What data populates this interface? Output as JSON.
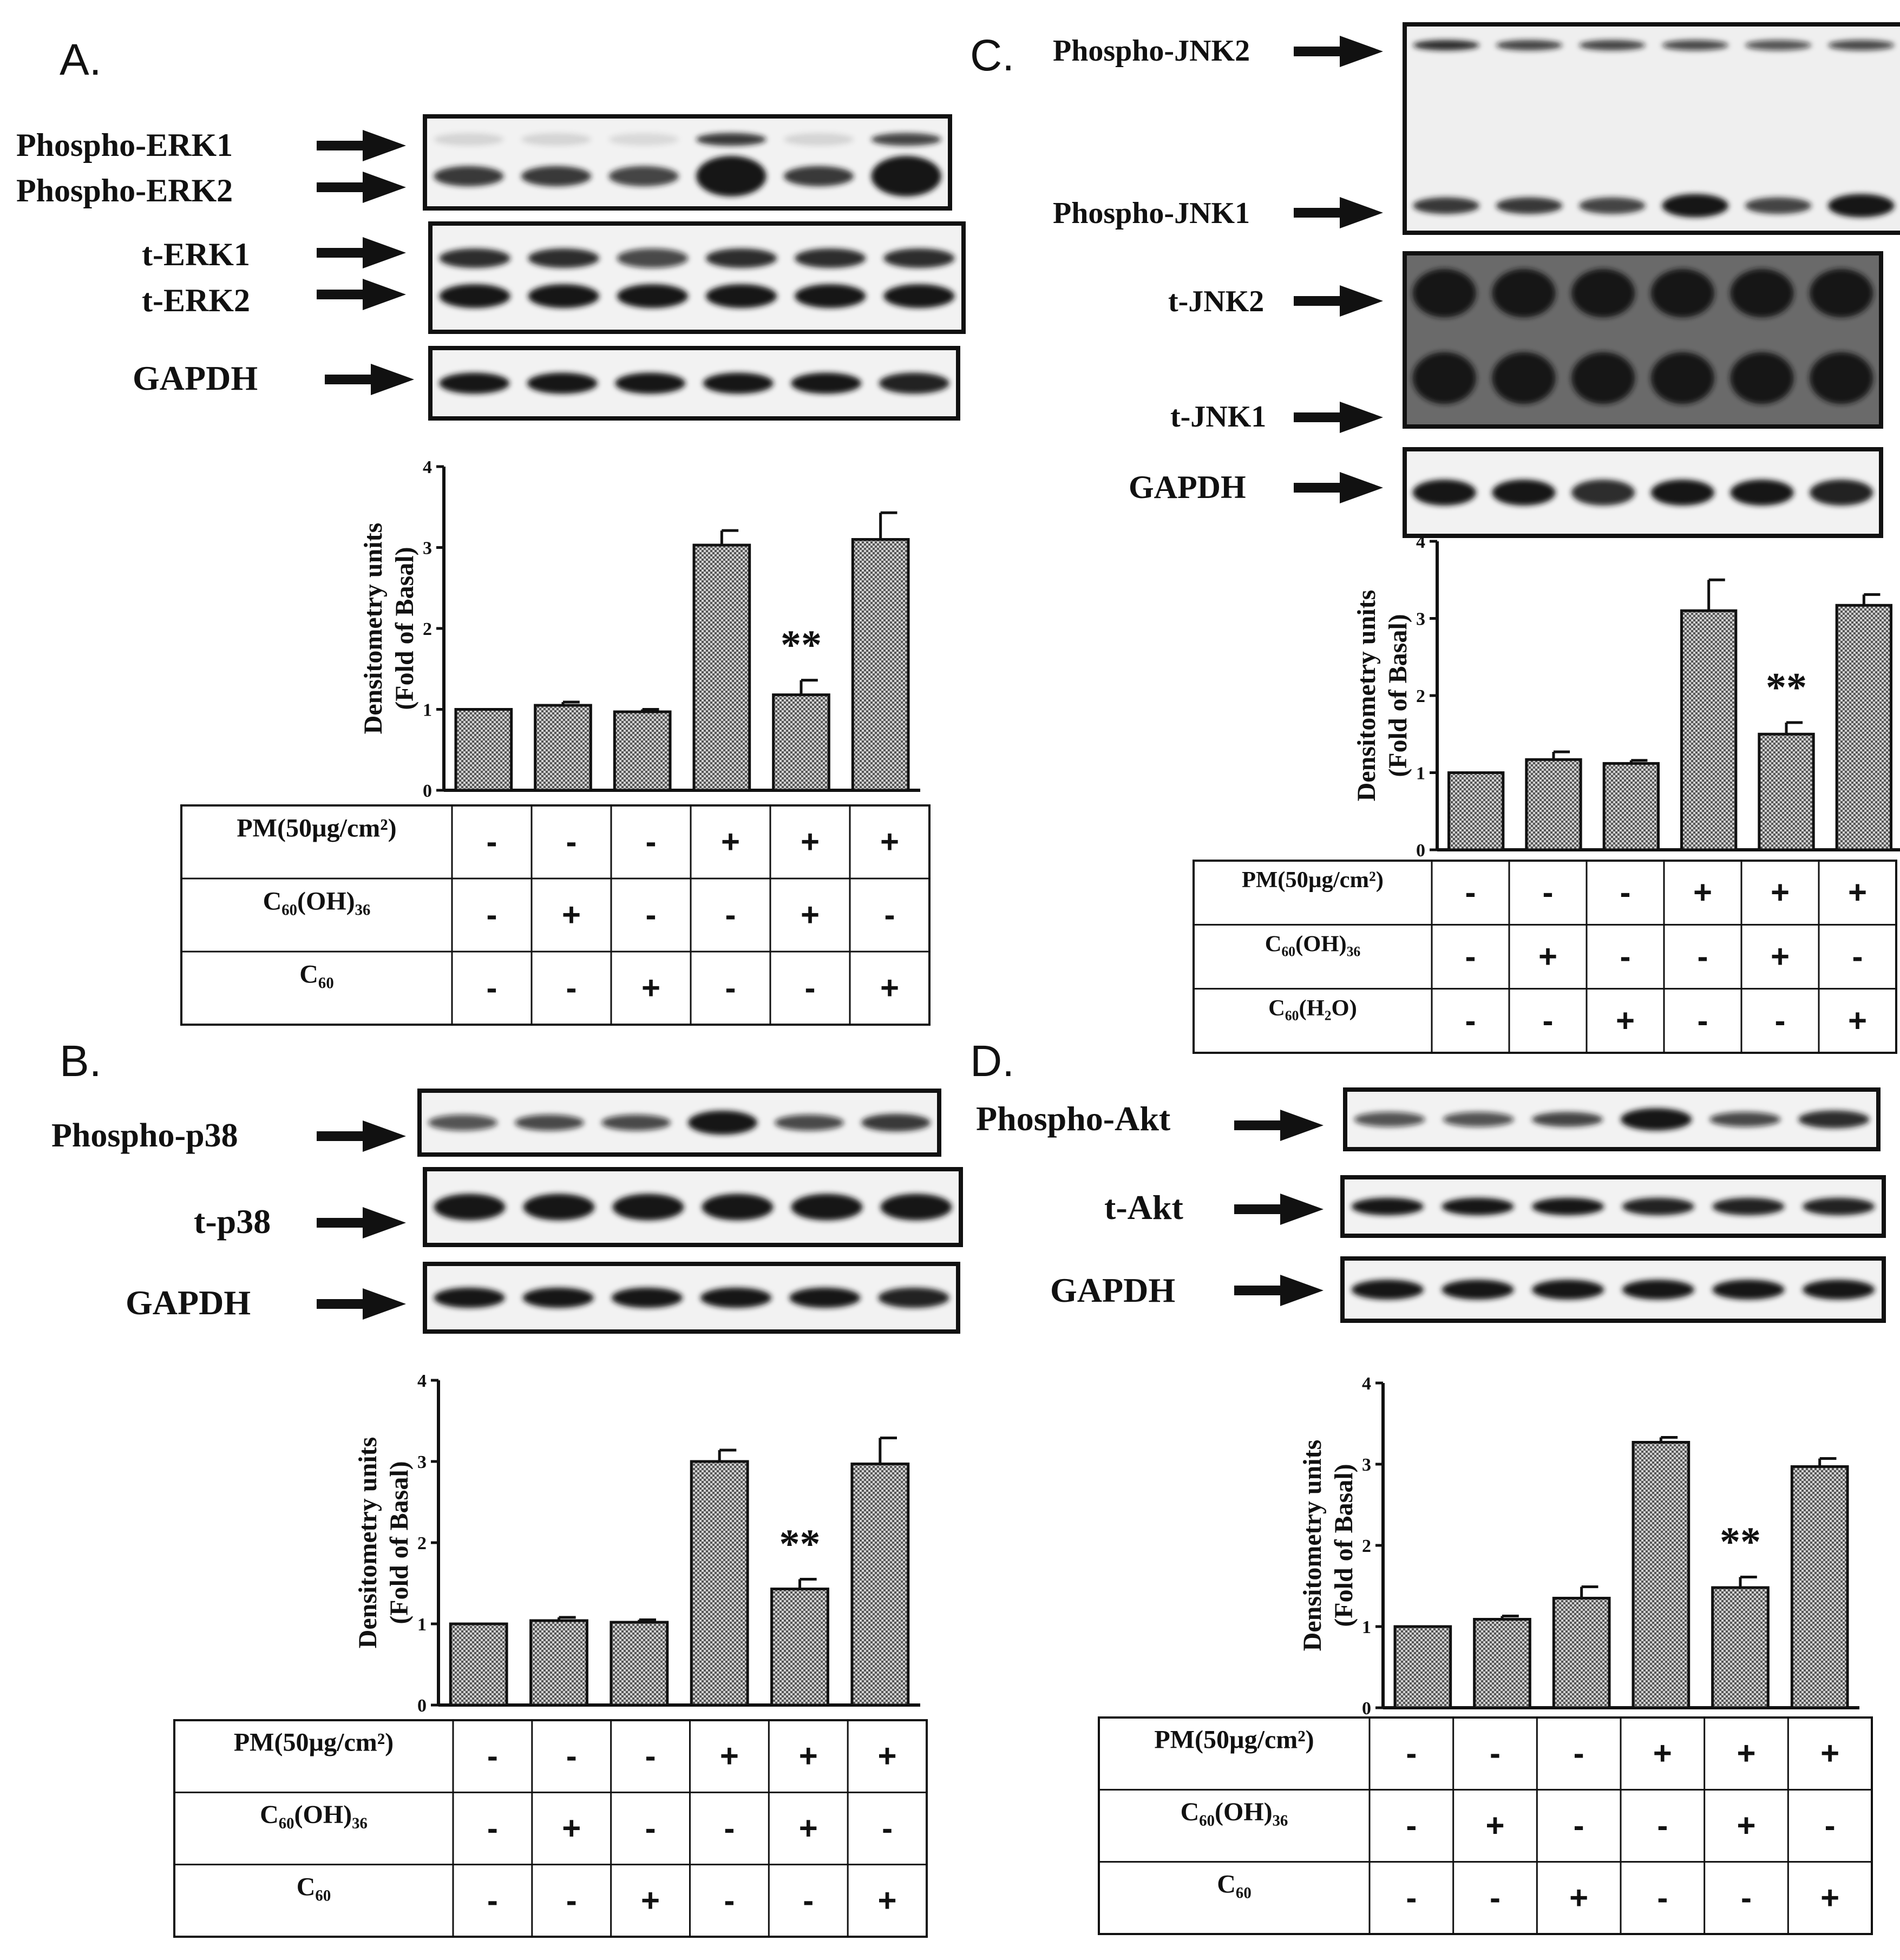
{
  "colors": {
    "ink": "#111111",
    "band": "#161616",
    "blot_bg_light": "#f4f4f4",
    "blot_bg_dark": "#6a6a6a"
  },
  "chart_data": [
    {
      "type": "bar",
      "panel_label": "A.",
      "blot_labels": [
        "Phospho-ERK1",
        "Phospho-ERK2",
        "t-ERK1",
        "t-ERK2",
        "GAPDH"
      ],
      "ylabel": [
        "Densitometry units",
        "(Fold of Basal)"
      ],
      "yticks": [
        "0",
        "1",
        "2",
        "3",
        "4"
      ],
      "ylim": [
        0,
        4
      ],
      "values": [
        1.0,
        1.05,
        0.97,
        3.03,
        1.18,
        3.1
      ],
      "errors": [
        0.0,
        0.04,
        0.03,
        0.18,
        0.18,
        0.33
      ],
      "annotation": {
        "bar_index": 4,
        "text": "**"
      },
      "treatment_rows": [
        {
          "label": "PM(50µg/cm²)",
          "signs": [
            "-",
            "-",
            "-",
            "+",
            "+",
            "+"
          ]
        },
        {
          "label": "C₆₀(OH)₃₆",
          "signs": [
            "-",
            "+",
            "-",
            "-",
            "+",
            "-"
          ]
        },
        {
          "label": "C₆₀",
          "signs": [
            "-",
            "-",
            "+",
            "-",
            "-",
            "+"
          ]
        }
      ]
    },
    {
      "type": "bar",
      "panel_label": "B.",
      "blot_labels": [
        "Phospho-p38",
        "t-p38",
        "GAPDH"
      ],
      "ylabel": [
        "Densitometry units",
        "(Fold of Basal)"
      ],
      "yticks": [
        "0",
        "1",
        "2",
        "3",
        "4"
      ],
      "ylim": [
        0,
        4
      ],
      "values": [
        1.0,
        1.04,
        1.02,
        3.0,
        1.43,
        2.97
      ],
      "errors": [
        0.0,
        0.04,
        0.03,
        0.14,
        0.12,
        0.32
      ],
      "annotation": {
        "bar_index": 4,
        "text": "**"
      },
      "treatment_rows": [
        {
          "label": "PM(50µg/cm²)",
          "signs": [
            "-",
            "-",
            "-",
            "+",
            "+",
            "+"
          ]
        },
        {
          "label": "C₆₀(OH)₃₆",
          "signs": [
            "-",
            "+",
            "-",
            "-",
            "+",
            "-"
          ]
        },
        {
          "label": "C₆₀",
          "signs": [
            "-",
            "-",
            "+",
            "-",
            "-",
            "+"
          ]
        }
      ]
    },
    {
      "type": "bar",
      "panel_label": "C.",
      "blot_labels": [
        "Phospho-JNK2",
        "Phospho-JNK1",
        "t-JNK2",
        "t-JNK1",
        "GAPDH"
      ],
      "ylabel": [
        "Densitometry units",
        "(Fold of Basal)"
      ],
      "yticks": [
        "0",
        "1",
        "2",
        "3",
        "4"
      ],
      "ylim": [
        0,
        4
      ],
      "values": [
        1.0,
        1.17,
        1.12,
        3.1,
        1.5,
        3.17
      ],
      "errors": [
        0.0,
        0.1,
        0.04,
        0.4,
        0.15,
        0.14
      ],
      "annotation": {
        "bar_index": 4,
        "text": "**"
      },
      "treatment_rows": [
        {
          "label": "PM(50µg/cm²)",
          "signs": [
            "-",
            "-",
            "-",
            "+",
            "+",
            "+"
          ]
        },
        {
          "label": "C₆₀(OH)₃₆",
          "signs": [
            "-",
            "+",
            "-",
            "-",
            "+",
            "-"
          ]
        },
        {
          "label": "C₆₀(H₂O)",
          "signs": [
            "-",
            "-",
            "+",
            "-",
            "-",
            "+"
          ]
        }
      ]
    },
    {
      "type": "bar",
      "panel_label": "D.",
      "blot_labels": [
        "Phospho-Akt",
        "t-Akt",
        "GAPDH"
      ],
      "ylabel": [
        "Densitometry units",
        "(Fold of Basal)"
      ],
      "yticks": [
        "0",
        "1",
        "2",
        "3",
        "4"
      ],
      "ylim": [
        0,
        4
      ],
      "values": [
        1.0,
        1.09,
        1.35,
        3.27,
        1.48,
        2.97
      ],
      "errors": [
        0.0,
        0.04,
        0.14,
        0.06,
        0.13,
        0.1
      ],
      "annotation": {
        "bar_index": 4,
        "text": "**"
      },
      "treatment_rows": [
        {
          "label": "PM(50µg/cm²)",
          "signs": [
            "-",
            "-",
            "-",
            "+",
            "+",
            "+"
          ]
        },
        {
          "label": "C₆₀(OH)₃₆",
          "signs": [
            "-",
            "+",
            "-",
            "-",
            "+",
            "-"
          ]
        },
        {
          "label": "C₆₀",
          "signs": [
            "-",
            "-",
            "+",
            "-",
            "-",
            "+"
          ]
        }
      ]
    }
  ]
}
